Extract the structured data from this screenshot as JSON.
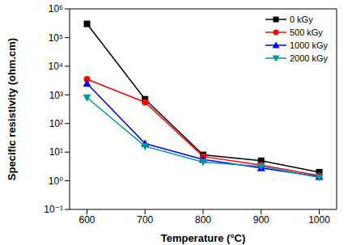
{
  "chart_data": {
    "type": "line",
    "x_label": "Temperature (°C)",
    "y_label": "Specific resistivity (ohm.cm)",
    "x": [
      600,
      700,
      800,
      900,
      1000
    ],
    "series": [
      {
        "name": "0 kGy",
        "color": "#000000",
        "marker": "square",
        "values": [
          300000,
          700,
          8,
          5,
          2
        ]
      },
      {
        "name": "500 kGy",
        "color": "#ff0000",
        "marker": "circle",
        "values": [
          3500,
          550,
          7,
          3.5,
          1.5
        ]
      },
      {
        "name": "1000 kGy",
        "color": "#0000ff",
        "marker": "triangle",
        "values": [
          2500,
          20,
          5.5,
          2.8,
          1.4
        ]
      },
      {
        "name": "2000 kGy",
        "color": "#009999",
        "marker": "triangle-down",
        "values": [
          800,
          16,
          4.5,
          3.2,
          1.3
        ]
      }
    ],
    "xlim": [
      570,
      1030
    ],
    "xticks": [
      600,
      700,
      800,
      900,
      1000
    ],
    "ylim": [
      0.1,
      1000000
    ],
    "yticks": [
      {
        "value": 0.1,
        "label": "10⁻¹"
      },
      {
        "value": 1,
        "label": "10⁰"
      },
      {
        "value": 10,
        "label": "10¹"
      },
      {
        "value": 100,
        "label": "10²"
      },
      {
        "value": 1000,
        "label": "10³"
      },
      {
        "value": 10000,
        "label": "10⁴"
      },
      {
        "value": 100000,
        "label": "10⁵"
      },
      {
        "value": 1000000,
        "label": "10⁶"
      }
    ],
    "log": "y",
    "legend": "upper right",
    "grid": false
  }
}
